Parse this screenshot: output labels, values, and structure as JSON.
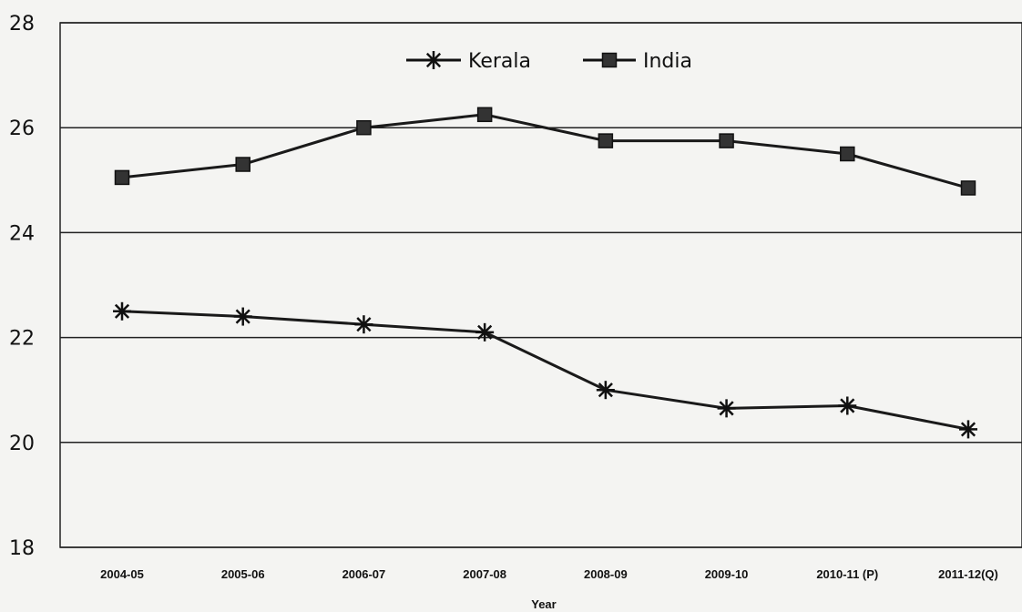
{
  "chart_data": {
    "type": "line",
    "categories": [
      "2004-05",
      "2005-06",
      "2006-07",
      "2007-08",
      "2008-09",
      "2009-10",
      "2010-11 (P)",
      "2011-12(Q)"
    ],
    "series": [
      {
        "name": "Kerala",
        "marker": "asterisk",
        "values": [
          22.5,
          22.4,
          22.25,
          22.1,
          21.0,
          20.65,
          20.7,
          20.25
        ]
      },
      {
        "name": "India",
        "marker": "square",
        "values": [
          25.05,
          25.3,
          26.0,
          26.25,
          25.75,
          25.75,
          25.5,
          24.85
        ]
      }
    ],
    "xlabel": "Year",
    "ylabel": "",
    "ylim": [
      18,
      28
    ],
    "yticks": [
      18,
      20,
      22,
      24,
      26,
      28
    ],
    "grid": true,
    "legend": "top-center",
    "colors": {
      "line": "#1a1a1a",
      "grid": "#222222",
      "background": "#f4f4f2"
    }
  }
}
